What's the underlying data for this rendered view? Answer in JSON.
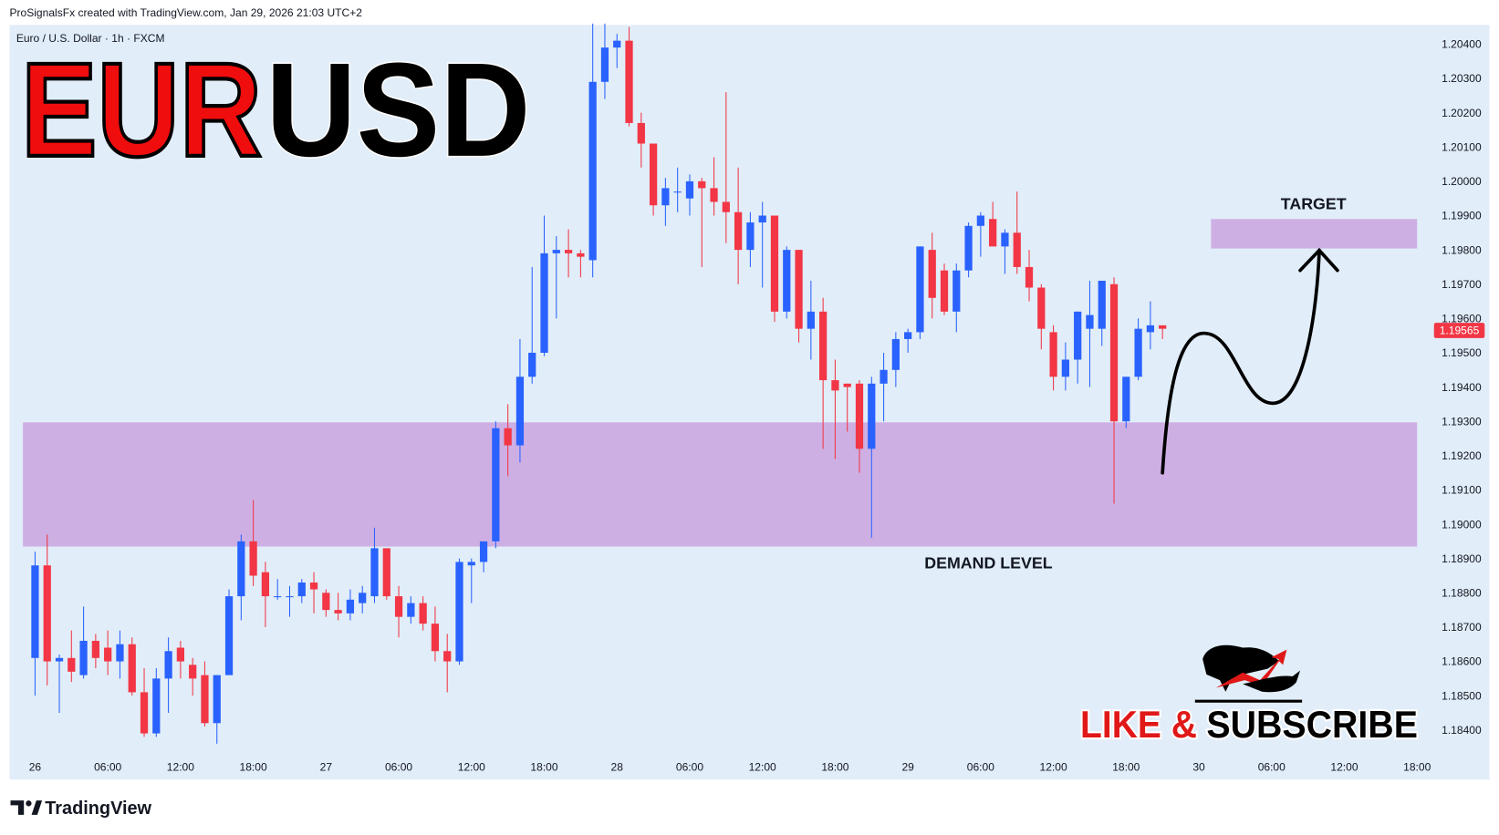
{
  "header": {
    "credit": "ProSignalsFx created with TradingView.com, Jan 29, 2026 21:03 UTC+2"
  },
  "branding": {
    "title_left": "EUR",
    "title_right": "USD",
    "cta_left": "LIKE &",
    "cta_right": "SUBSCRIBE",
    "footer_logo": "TradingView"
  },
  "chart_data": {
    "type": "candlestick",
    "symbol": "Euro / U.S. Dollar · 1h · FXCM",
    "up_color": "#2962ff",
    "down_color": "#f23645",
    "open": [
      1.1861,
      1.1888,
      1.186,
      1.1861,
      1.1856,
      1.1866,
      1.1864,
      1.186,
      1.1865,
      1.1851,
      1.1839,
      1.1855,
      1.1864,
      1.1859,
      1.1856,
      1.1842,
      1.1856,
      1.1879,
      1.1895,
      1.1886,
      1.1879,
      1.1879,
      1.1879,
      1.1883,
      1.188,
      1.1875,
      1.1874,
      1.1877,
      1.1879,
      1.1893,
      1.1879,
      1.1873,
      1.1877,
      1.1871,
      1.1863,
      1.186,
      1.1888,
      1.1889,
      1.1895,
      1.1928,
      1.1923,
      1.1943,
      1.195,
      1.1979,
      1.198,
      1.1979,
      1.1977,
      1.2029,
      1.2039,
      1.2041,
      1.2017,
      1.2011,
      1.1993,
      1.1997,
      1.1995,
      1.2,
      1.1998,
      1.1994,
      1.1991,
      1.198,
      1.1988,
      1.199,
      1.1962,
      1.198,
      1.1957,
      1.1962,
      1.1942,
      1.1941,
      1.1941,
      1.1922,
      1.1941,
      1.1945,
      1.1954,
      1.1956,
      1.198,
      1.1974,
      1.1962,
      1.1974,
      1.1987,
      1.1989,
      1.1981,
      1.1985,
      1.1975,
      1.1969,
      1.1956,
      1.1943,
      1.1948,
      1.1957,
      1.1957,
      1.197,
      1.193,
      1.1943,
      1.1956,
      1.1958
    ],
    "high": [
      1.1892,
      1.1897,
      1.1862,
      1.1869,
      1.1876,
      1.1868,
      1.1869,
      1.1869,
      1.1867,
      1.1858,
      1.1858,
      1.1867,
      1.1866,
      1.1861,
      1.186,
      1.1856,
      1.1881,
      1.1897,
      1.1907,
      1.1889,
      1.1884,
      1.1882,
      1.1884,
      1.1886,
      1.1881,
      1.188,
      1.1881,
      1.1882,
      1.1899,
      1.1893,
      1.1882,
      1.1879,
      1.1879,
      1.1876,
      1.1868,
      1.189,
      1.189,
      1.1895,
      1.193,
      1.1935,
      1.1954,
      1.1975,
      1.199,
      1.1984,
      1.1986,
      1.198,
      1.2046,
      1.2046,
      1.2043,
      1.2045,
      1.202,
      1.2011,
      1.2001,
      1.2004,
      1.2002,
      1.2001,
      1.2007,
      1.2026,
      1.2004,
      1.1991,
      1.1994,
      1.199,
      1.1981,
      1.198,
      1.1971,
      1.1966,
      1.1948,
      1.1941,
      1.1942,
      1.1943,
      1.195,
      1.1956,
      1.1957,
      1.1981,
      1.1985,
      1.1976,
      1.1976,
      1.1988,
      1.1991,
      1.1994,
      1.1986,
      1.1997,
      1.198,
      1.197,
      1.1958,
      1.1953,
      1.1962,
      1.1971,
      1.1971,
      1.1972,
      1.1943,
      1.196,
      1.1965,
      1.1958
    ],
    "low": [
      1.185,
      1.1853,
      1.1845,
      1.1854,
      1.1855,
      1.1858,
      1.1856,
      1.1855,
      1.185,
      1.1838,
      1.1838,
      1.1845,
      1.1855,
      1.185,
      1.1841,
      1.1836,
      1.1856,
      1.1872,
      1.1882,
      1.187,
      1.1878,
      1.1873,
      1.1877,
      1.1874,
      1.1873,
      1.1872,
      1.1872,
      1.1874,
      1.1877,
      1.1878,
      1.1867,
      1.1871,
      1.1869,
      1.186,
      1.1851,
      1.1859,
      1.1877,
      1.1886,
      1.1893,
      1.1914,
      1.1918,
      1.1941,
      1.1949,
      1.196,
      1.1972,
      1.1972,
      1.1972,
      1.2024,
      1.2033,
      1.2016,
      1.2004,
      1.199,
      1.1987,
      1.1991,
      1.199,
      1.1975,
      1.199,
      1.1982,
      1.197,
      1.1975,
      1.1969,
      1.1959,
      1.196,
      1.1953,
      1.1948,
      1.1922,
      1.1919,
      1.1927,
      1.1915,
      1.1896,
      1.193,
      1.194,
      1.195,
      1.1954,
      1.196,
      1.1961,
      1.1956,
      1.1972,
      1.1978,
      1.1981,
      1.1973,
      1.1973,
      1.1965,
      1.1951,
      1.1939,
      1.1939,
      1.1941,
      1.194,
      1.1952,
      1.1906,
      1.1928,
      1.1942,
      1.1951,
      1.1954
    ],
    "close": [
      1.1888,
      1.186,
      1.1861,
      1.1857,
      1.1866,
      1.1861,
      1.186,
      1.1865,
      1.1851,
      1.1839,
      1.1855,
      1.1863,
      1.186,
      1.1855,
      1.1842,
      1.1856,
      1.1879,
      1.1895,
      1.1885,
      1.1879,
      1.1879,
      1.1879,
      1.1883,
      1.1881,
      1.1875,
      1.1874,
      1.1878,
      1.188,
      1.1893,
      1.1879,
      1.1873,
      1.1877,
      1.1871,
      1.1863,
      1.186,
      1.1889,
      1.1889,
      1.1895,
      1.1928,
      1.1923,
      1.1943,
      1.195,
      1.1979,
      1.198,
      1.1979,
      1.1978,
      1.2029,
      1.2039,
      1.2041,
      1.2017,
      1.2011,
      1.1993,
      1.1998,
      1.1997,
      1.2,
      1.1998,
      1.1994,
      1.1991,
      1.198,
      1.1988,
      1.199,
      1.1962,
      1.198,
      1.1957,
      1.1962,
      1.1942,
      1.1939,
      1.194,
      1.1922,
      1.1941,
      1.1945,
      1.1954,
      1.1956,
      1.1981,
      1.1966,
      1.1962,
      1.1974,
      1.1987,
      1.199,
      1.1981,
      1.1985,
      1.1975,
      1.1969,
      1.1957,
      1.1943,
      1.1948,
      1.1962,
      1.1961,
      1.1971,
      1.193,
      1.1943,
      1.1957,
      1.1958,
      1.1957
    ],
    "xlim": [
      -1,
      115
    ],
    "xticks": [
      {
        "value": 0,
        "label": "26"
      },
      {
        "value": 6,
        "label": "06:00"
      },
      {
        "value": 12,
        "label": "12:00"
      },
      {
        "value": 18,
        "label": "18:00"
      },
      {
        "value": 24,
        "label": "27"
      },
      {
        "value": 30,
        "label": "06:00"
      },
      {
        "value": 36,
        "label": "12:00"
      },
      {
        "value": 42,
        "label": "18:00"
      },
      {
        "value": 48,
        "label": "28"
      },
      {
        "value": 54,
        "label": "06:00"
      },
      {
        "value": 60,
        "label": "12:00"
      },
      {
        "value": 66,
        "label": "18:00"
      },
      {
        "value": 72,
        "label": "29"
      },
      {
        "value": 78,
        "label": "06:00"
      },
      {
        "value": 84,
        "label": "12:00"
      },
      {
        "value": 90,
        "label": "18:00"
      },
      {
        "value": 96,
        "label": "30"
      },
      {
        "value": 102,
        "label": "06:00"
      },
      {
        "value": 108,
        "label": "12:00"
      },
      {
        "value": 114,
        "label": "18:00"
      }
    ],
    "ylim": [
      1.18328,
      1.20456
    ],
    "yticks": [
      {
        "value": 1.184,
        "label": "1.18400"
      },
      {
        "value": 1.185,
        "label": "1.18500"
      },
      {
        "value": 1.186,
        "label": "1.18600"
      },
      {
        "value": 1.187,
        "label": "1.18700"
      },
      {
        "value": 1.188,
        "label": "1.18800"
      },
      {
        "value": 1.189,
        "label": "1.18900"
      },
      {
        "value": 1.19,
        "label": "1.19000"
      },
      {
        "value": 1.191,
        "label": "1.19100"
      },
      {
        "value": 1.192,
        "label": "1.19200"
      },
      {
        "value": 1.193,
        "label": "1.19300"
      },
      {
        "value": 1.194,
        "label": "1.19400"
      },
      {
        "value": 1.195,
        "label": "1.19500"
      },
      {
        "value": 1.196,
        "label": "1.19600"
      },
      {
        "value": 1.197,
        "label": "1.19700"
      },
      {
        "value": 1.198,
        "label": "1.19800"
      },
      {
        "value": 1.199,
        "label": "1.19900"
      },
      {
        "value": 1.2,
        "label": "1.20000"
      },
      {
        "value": 1.201,
        "label": "1.20100"
      },
      {
        "value": 1.202,
        "label": "1.20200"
      },
      {
        "value": 1.203,
        "label": "1.20300"
      },
      {
        "value": 1.204,
        "label": "1.20400"
      }
    ],
    "grid": false,
    "last_price": {
      "value": 1.19565,
      "label": "1.19565",
      "color": "#f23645"
    },
    "zones": [
      {
        "label": "DEMAND LEVEL",
        "y0": 1.18935,
        "y1": 1.19297,
        "x0": -1,
        "x1": 114,
        "color": "#cca9e2"
      },
      {
        "label": "TARGET",
        "y0": 1.19804,
        "y1": 1.1989,
        "x0": 97,
        "x1": 114,
        "color": "#cca9e2"
      }
    ]
  }
}
